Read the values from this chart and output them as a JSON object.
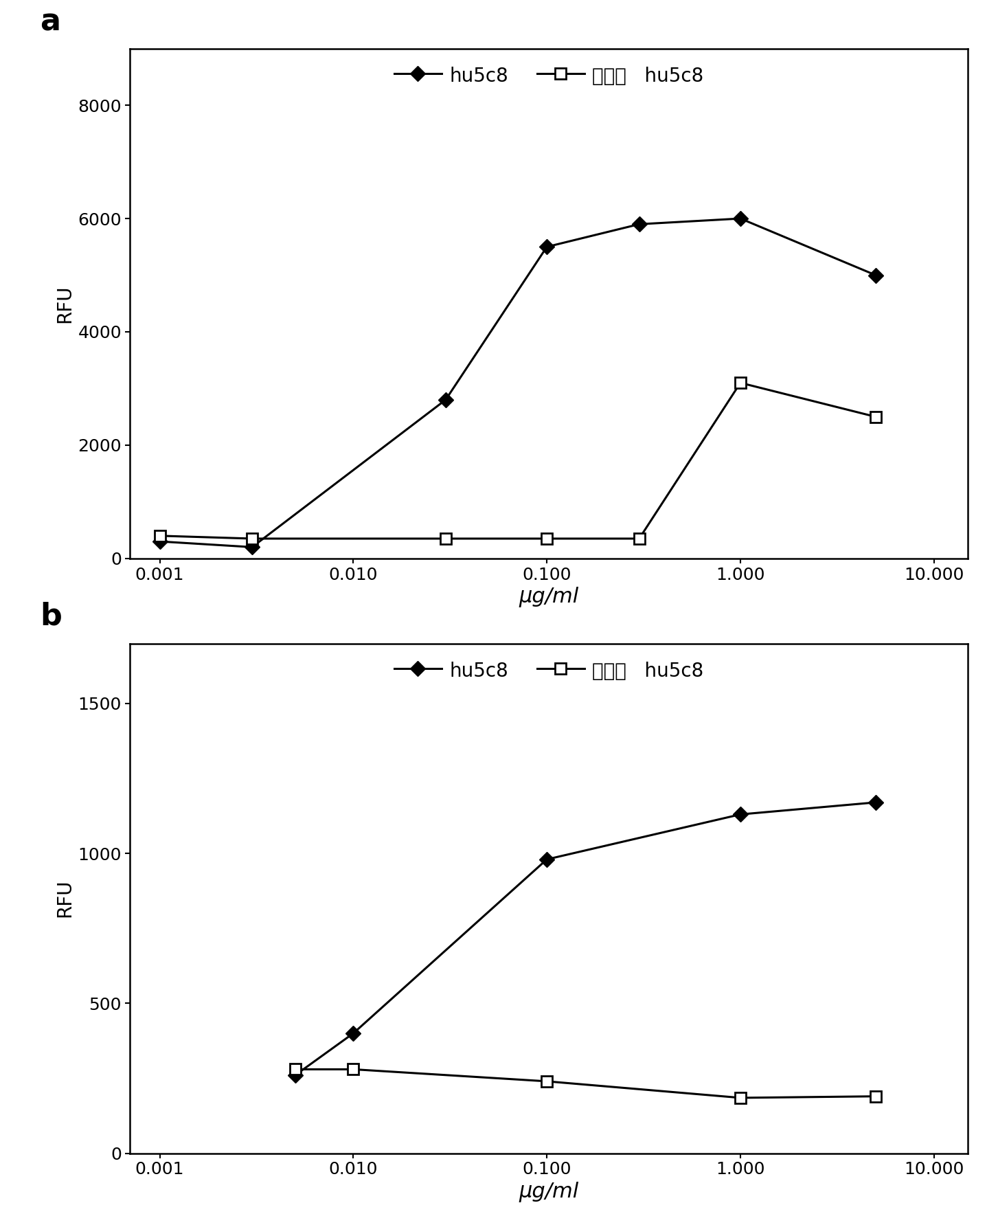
{
  "panel_a": {
    "hu5c8_x": [
      0.001,
      0.003,
      0.03,
      0.1,
      0.3,
      1.0,
      5.0
    ],
    "hu5c8_y": [
      300,
      200,
      2800,
      5500,
      5900,
      6000,
      5000
    ],
    "aglyco_x": [
      0.001,
      0.003,
      0.03,
      0.1,
      0.3,
      1.0,
      5.0
    ],
    "aglyco_y": [
      400,
      350,
      350,
      350,
      350,
      3100,
      2500
    ],
    "ylim": [
      0,
      9000
    ],
    "yticks": [
      0,
      2000,
      4000,
      6000,
      8000
    ],
    "xlim_left": 0.0007,
    "xlim_right": 15,
    "ylabel": "RFU",
    "xlabel": "μg/ml",
    "label": "a"
  },
  "panel_b": {
    "hu5c8_x": [
      0.005,
      0.01,
      0.1,
      1.0,
      5.0
    ],
    "hu5c8_y": [
      260,
      400,
      980,
      1130,
      1170
    ],
    "aglyco_x": [
      0.005,
      0.01,
      0.1,
      1.0,
      5.0
    ],
    "aglyco_y": [
      280,
      280,
      240,
      185,
      190
    ],
    "ylim": [
      0,
      1700
    ],
    "yticks": [
      0,
      500,
      1000,
      1500
    ],
    "xlim_left": 0.0007,
    "xlim_right": 15,
    "ylabel": "RFU",
    "xlabel": "μg/ml",
    "label": "b"
  },
  "legend_line1_label": "hu5c8",
  "legend_line2_label": "无糖基   hu5c8",
  "line_color": "#000000",
  "marker_size_diamond": 11,
  "marker_size_square": 11,
  "linewidth": 2.2,
  "background_color": "#ffffff",
  "xtick_labels_a": [
    "0.001",
    "0.010",
    "0.100",
    "1.000",
    "10.000"
  ],
  "xtick_labels_b": [
    "0.001",
    "0.010",
    "0.100",
    "1.000",
    "10.000"
  ],
  "xtick_positions": [
    0.001,
    0.01,
    0.1,
    1.0,
    10.0
  ],
  "tick_fontsize": 18,
  "label_fontsize": 20,
  "xlabel_fontsize": 22,
  "panel_label_fontsize": 32,
  "legend_fontsize": 20
}
